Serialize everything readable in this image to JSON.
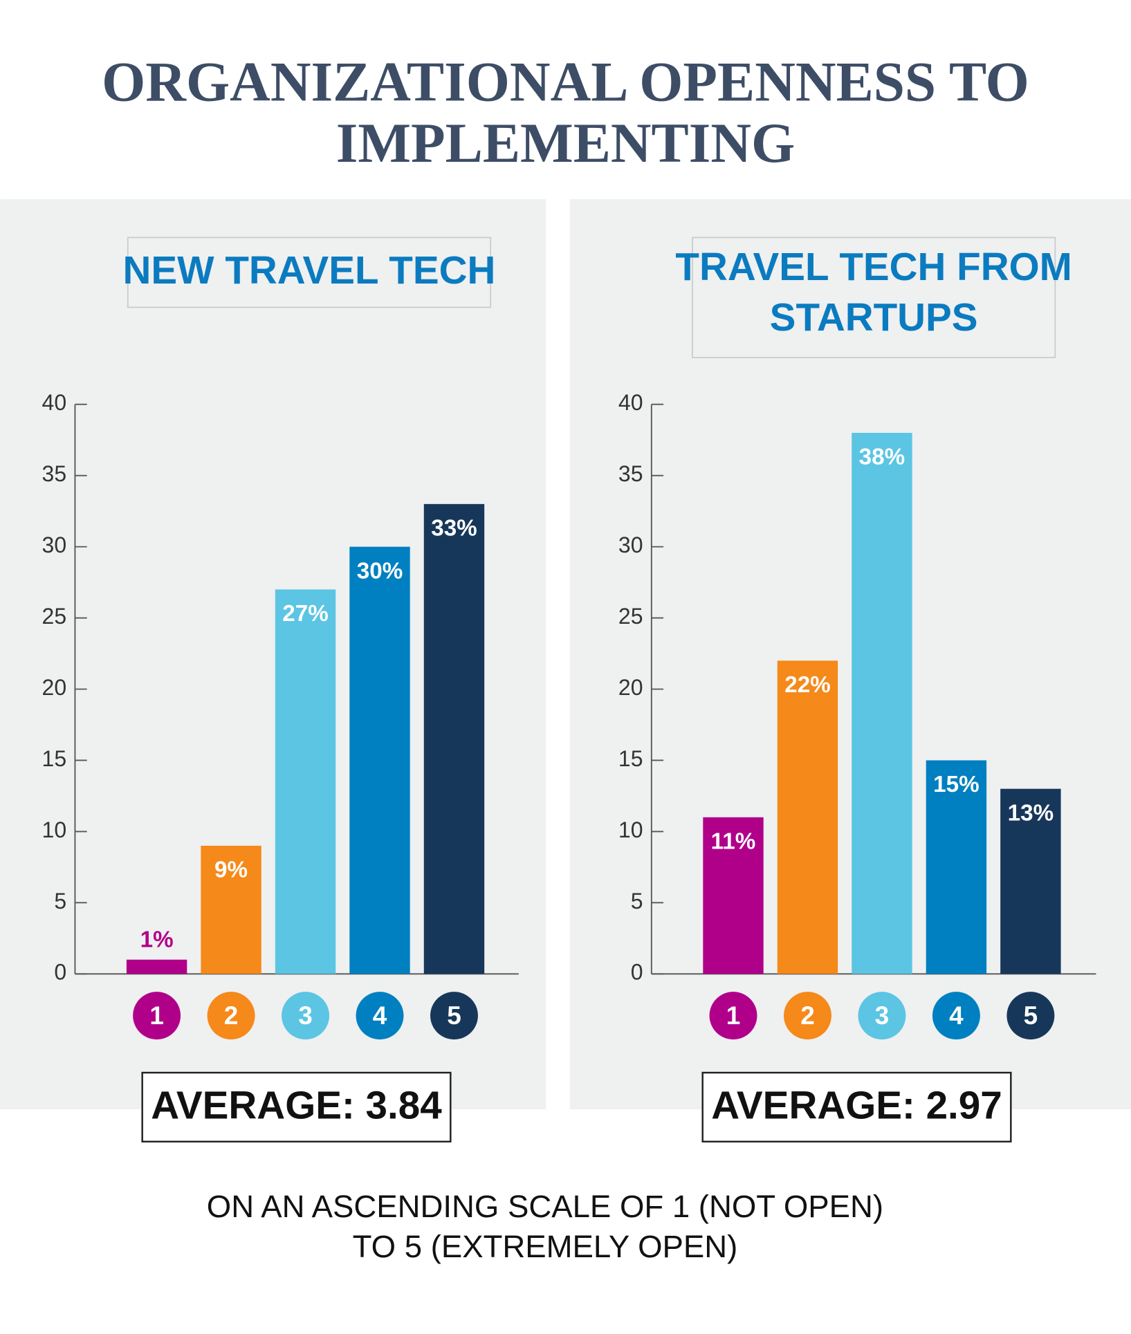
{
  "title": [
    "ORGANIZATIONAL OPENNESS TO",
    "IMPLEMENTING"
  ],
  "chart_data": [
    {
      "type": "bar",
      "title": [
        "NEW TRAVEL TECH"
      ],
      "categories": [
        "1",
        "2",
        "3",
        "4",
        "5"
      ],
      "values": [
        1,
        9,
        27,
        30,
        33
      ],
      "value_labels": [
        "1%",
        "9%",
        "27%",
        "30%",
        "33%"
      ],
      "colors": [
        "#b0008a",
        "#f5891a",
        "#5bc5e3",
        "#0080c0",
        "#17375a"
      ],
      "ylim": [
        0,
        40
      ],
      "yticks": [
        0,
        5,
        10,
        15,
        20,
        25,
        30,
        35,
        40
      ],
      "annotation": "AVERAGE: 3.84"
    },
    {
      "type": "bar",
      "title": [
        "TRAVEL TECH FROM",
        "STARTUPS"
      ],
      "categories": [
        "1",
        "2",
        "3",
        "4",
        "5"
      ],
      "values": [
        11,
        22,
        38,
        15,
        13
      ],
      "value_labels": [
        "11%",
        "22%",
        "38%",
        "15%",
        "13%"
      ],
      "colors": [
        "#b0008a",
        "#f5891a",
        "#5bc5e3",
        "#0080c0",
        "#17375a"
      ],
      "ylim": [
        0,
        40
      ],
      "yticks": [
        0,
        5,
        10,
        15,
        20,
        25,
        30,
        35,
        40
      ],
      "annotation": "AVERAGE: 2.97"
    }
  ],
  "footnote": [
    "ON AN ASCENDING SCALE OF 1 (NOT OPEN)",
    "TO 5 (EXTREMELY OPEN)"
  ]
}
